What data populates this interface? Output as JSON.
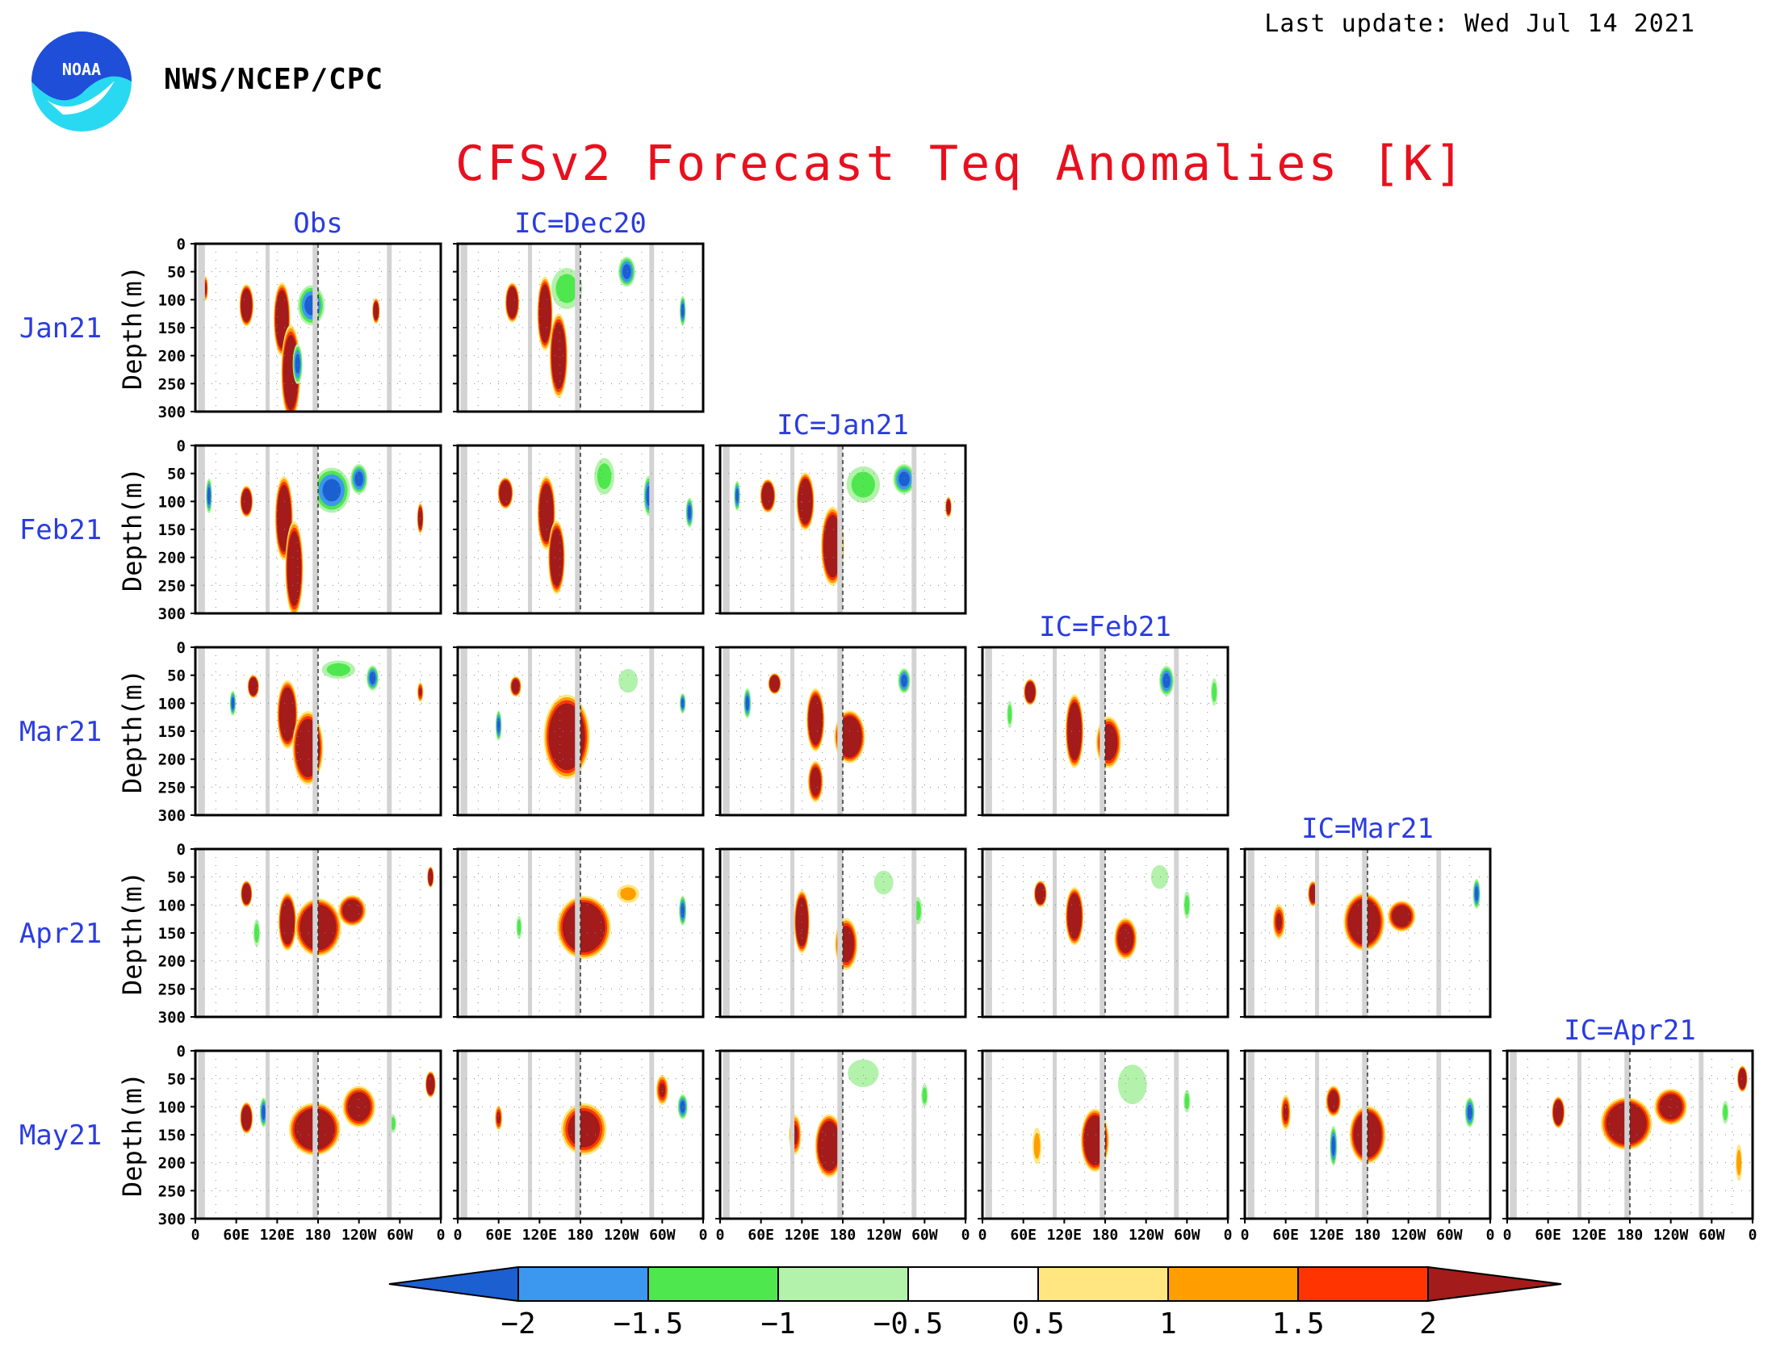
{
  "header": {
    "last_update": "Last update: Wed Jul 14 2021",
    "agency": "NWS/NCEP/CPC",
    "logo_text": "NOAA",
    "title": "CFSv2 Forecast Teq Anomalies [K]"
  },
  "colors": {
    "title": "#e8101e",
    "panel_label": "#2a3ce0",
    "land_mask": "#d3d3d3",
    "logo_blue": "#1f4ed8",
    "logo_cyan": "#29d9f2"
  },
  "chart_data": {
    "type": "heatmap",
    "description": "Matrix of depth-longitude sections of equatorial subsurface temperature anomalies",
    "row_labels": [
      "Jan21",
      "Feb21",
      "Mar21",
      "Apr21",
      "May21"
    ],
    "column_labels": [
      "Obs",
      "IC=Dec20",
      "IC=Jan21",
      "IC=Feb21",
      "IC=Mar21",
      "IC=Apr21"
    ],
    "ylabel": "Depth(m)",
    "y_ticks": [
      "0",
      "50",
      "100",
      "150",
      "200",
      "250",
      "300"
    ],
    "ylim": [
      0,
      300
    ],
    "x_ticks": [
      "0",
      "60E",
      "120E",
      "180",
      "120W",
      "60W",
      "0"
    ],
    "xlim": [
      0,
      360
    ],
    "land_mask_longitudes": [
      [
        4,
        14
      ],
      [
        103,
        109
      ],
      [
        172,
        180
      ],
      [
        281,
        288
      ]
    ],
    "dateline_longitude": 180,
    "legend": {
      "position": "bottom",
      "levels": [
        "-2",
        "-1.5",
        "-1",
        "-0.5",
        "0.5",
        "1",
        "1.5",
        "2"
      ],
      "colors": [
        "#1c5fd1",
        "#3c97ef",
        "#4ee84e",
        "#b3f2ab",
        "#ffffff",
        "#ffe680",
        "#ff9e00",
        "#ff3400",
        "#a31b1b"
      ]
    },
    "panels": [
      {
        "row": "Jan21",
        "column": "Obs",
        "blobs": [
          [
            75,
            110,
            11,
            40,
            4
          ],
          [
            127,
            135,
            13,
            70,
            4
          ],
          [
            140,
            230,
            15,
            90,
            4
          ],
          [
            150,
            215,
            8,
            40,
            -2
          ],
          [
            170,
            110,
            22,
            40,
            -2
          ],
          [
            265,
            120,
            6,
            25,
            3
          ],
          [
            15,
            80,
            4,
            25,
            2
          ]
        ]
      },
      {
        "row": "Jan21",
        "column": "IC=Dec20",
        "blobs": [
          [
            80,
            105,
            11,
            38,
            4
          ],
          [
            128,
            125,
            12,
            70,
            4
          ],
          [
            148,
            200,
            14,
            80,
            4
          ],
          [
            160,
            80,
            28,
            45,
            -1
          ],
          [
            248,
            50,
            14,
            30,
            -2
          ],
          [
            330,
            120,
            5,
            30,
            -2
          ]
        ]
      },
      {
        "row": "Feb21",
        "column": "Obs",
        "blobs": [
          [
            75,
            100,
            10,
            30,
            4
          ],
          [
            130,
            130,
            14,
            80,
            4
          ],
          [
            145,
            220,
            14,
            90,
            4
          ],
          [
            200,
            80,
            30,
            45,
            -2
          ],
          [
            240,
            60,
            14,
            30,
            -2
          ],
          [
            20,
            90,
            5,
            35,
            -2
          ],
          [
            330,
            130,
            5,
            30,
            3
          ]
        ]
      },
      {
        "row": "Feb21",
        "column": "IC=Dec20",
        "blobs": [
          [
            70,
            85,
            12,
            30,
            4
          ],
          [
            130,
            120,
            14,
            70,
            4
          ],
          [
            145,
            200,
            13,
            70,
            4
          ],
          [
            215,
            55,
            18,
            40,
            -1
          ],
          [
            280,
            90,
            8,
            40,
            -2
          ],
          [
            340,
            120,
            6,
            30,
            -2
          ]
        ]
      },
      {
        "row": "Feb21",
        "column": "IC=Jan21",
        "blobs": [
          [
            70,
            90,
            12,
            32,
            4
          ],
          [
            125,
            100,
            14,
            55,
            4
          ],
          [
            165,
            180,
            18,
            75,
            4
          ],
          [
            210,
            70,
            30,
            40,
            -1
          ],
          [
            270,
            60,
            18,
            30,
            -2
          ],
          [
            25,
            90,
            5,
            30,
            -2
          ],
          [
            335,
            110,
            5,
            20,
            3
          ]
        ]
      },
      {
        "row": "Mar21",
        "column": "Obs",
        "blobs": [
          [
            85,
            70,
            9,
            22,
            4
          ],
          [
            135,
            120,
            16,
            65,
            4
          ],
          [
            165,
            180,
            24,
            70,
            4
          ],
          [
            260,
            55,
            10,
            25,
            -2
          ],
          [
            210,
            40,
            30,
            20,
            -1
          ],
          [
            55,
            100,
            5,
            25,
            -2
          ],
          [
            330,
            80,
            5,
            20,
            2
          ]
        ]
      },
      {
        "row": "Mar21",
        "column": "IC=Dec20",
        "blobs": [
          [
            85,
            70,
            9,
            20,
            3
          ],
          [
            160,
            160,
            36,
            80,
            4
          ],
          [
            60,
            140,
            5,
            30,
            -2
          ],
          [
            330,
            100,
            5,
            20,
            -2
          ],
          [
            250,
            60,
            20,
            30,
            -0.5
          ]
        ]
      },
      {
        "row": "Mar21",
        "column": "IC=Jan21",
        "blobs": [
          [
            80,
            65,
            10,
            20,
            4
          ],
          [
            140,
            130,
            14,
            60,
            4
          ],
          [
            190,
            160,
            24,
            50,
            4
          ],
          [
            270,
            60,
            10,
            25,
            -2
          ],
          [
            40,
            100,
            6,
            30,
            -2
          ],
          [
            140,
            240,
            12,
            40,
            3
          ]
        ]
      },
      {
        "row": "Mar21",
        "column": "IC=Feb21",
        "blobs": [
          [
            70,
            80,
            10,
            25,
            4
          ],
          [
            135,
            150,
            14,
            70,
            4
          ],
          [
            185,
            170,
            20,
            50,
            3
          ],
          [
            270,
            60,
            12,
            30,
            -2
          ],
          [
            40,
            120,
            5,
            30,
            -1
          ],
          [
            340,
            80,
            6,
            30,
            -1
          ]
        ]
      },
      {
        "row": "Apr21",
        "column": "Obs",
        "blobs": [
          [
            75,
            80,
            9,
            25,
            4
          ],
          [
            135,
            130,
            14,
            55,
            4
          ],
          [
            180,
            140,
            36,
            55,
            4
          ],
          [
            230,
            110,
            22,
            30,
            3
          ],
          [
            90,
            150,
            6,
            30,
            -1
          ],
          [
            345,
            50,
            5,
            20,
            4
          ]
        ]
      },
      {
        "row": "Apr21",
        "column": "IC=Dec20",
        "blobs": [
          [
            185,
            140,
            42,
            60,
            4
          ],
          [
            90,
            140,
            5,
            25,
            -1
          ],
          [
            330,
            110,
            6,
            30,
            -2
          ],
          [
            250,
            80,
            20,
            20,
            1
          ]
        ]
      },
      {
        "row": "Apr21",
        "column": "IC=Jan21",
        "blobs": [
          [
            120,
            130,
            12,
            60,
            4
          ],
          [
            185,
            170,
            18,
            50,
            3
          ],
          [
            290,
            110,
            8,
            30,
            -1
          ],
          [
            240,
            60,
            20,
            30,
            -0.5
          ]
        ]
      },
      {
        "row": "Apr21",
        "column": "IC=Feb21",
        "blobs": [
          [
            85,
            80,
            10,
            25,
            4
          ],
          [
            135,
            120,
            14,
            55,
            4
          ],
          [
            210,
            160,
            18,
            40,
            3
          ],
          [
            300,
            100,
            6,
            30,
            -1
          ],
          [
            260,
            50,
            18,
            30,
            -0.5
          ]
        ]
      },
      {
        "row": "Apr21",
        "column": "IC=Mar21",
        "blobs": [
          [
            100,
            80,
            8,
            25,
            3
          ],
          [
            175,
            130,
            32,
            55,
            4
          ],
          [
            230,
            120,
            22,
            30,
            3
          ],
          [
            340,
            80,
            6,
            30,
            -2
          ],
          [
            50,
            130,
            10,
            35,
            2
          ]
        ]
      },
      {
        "row": "May21",
        "column": "Obs",
        "blobs": [
          [
            75,
            120,
            10,
            30,
            4
          ],
          [
            175,
            140,
            40,
            50,
            4
          ],
          [
            240,
            100,
            26,
            40,
            3
          ],
          [
            345,
            60,
            8,
            25,
            4
          ],
          [
            100,
            110,
            6,
            30,
            -2
          ],
          [
            290,
            130,
            6,
            20,
            -1
          ]
        ]
      },
      {
        "row": "May21",
        "column": "IC=Dec20",
        "blobs": [
          [
            185,
            140,
            36,
            50,
            3
          ],
          [
            300,
            70,
            10,
            30,
            2
          ],
          [
            330,
            100,
            8,
            25,
            -2
          ],
          [
            60,
            120,
            6,
            25,
            2
          ]
        ]
      },
      {
        "row": "May21",
        "column": "IC=Jan21",
        "blobs": [
          [
            160,
            170,
            22,
            60,
            4
          ],
          [
            210,
            40,
            32,
            35,
            -0.5
          ],
          [
            300,
            80,
            6,
            25,
            -1
          ],
          [
            110,
            150,
            10,
            40,
            2
          ]
        ]
      },
      {
        "row": "May21",
        "column": "IC=Feb21",
        "blobs": [
          [
            165,
            160,
            22,
            60,
            4
          ],
          [
            220,
            60,
            30,
            50,
            -0.5
          ],
          [
            80,
            170,
            8,
            40,
            1
          ],
          [
            300,
            90,
            6,
            25,
            -1
          ]
        ]
      },
      {
        "row": "May21",
        "column": "IC=Mar21",
        "blobs": [
          [
            180,
            150,
            28,
            55,
            4
          ],
          [
            130,
            90,
            12,
            30,
            3
          ],
          [
            130,
            170,
            6,
            40,
            -2
          ],
          [
            330,
            110,
            8,
            30,
            -2
          ],
          [
            60,
            110,
            8,
            35,
            2
          ]
        ]
      },
      {
        "row": "May21",
        "column": "IC=Apr21",
        "blobs": [
          [
            75,
            110,
            10,
            30,
            4
          ],
          [
            175,
            130,
            40,
            50,
            4
          ],
          [
            240,
            100,
            26,
            35,
            3
          ],
          [
            345,
            50,
            8,
            25,
            4
          ],
          [
            320,
            110,
            6,
            25,
            -1
          ],
          [
            340,
            200,
            6,
            40,
            1
          ]
        ]
      }
    ]
  }
}
